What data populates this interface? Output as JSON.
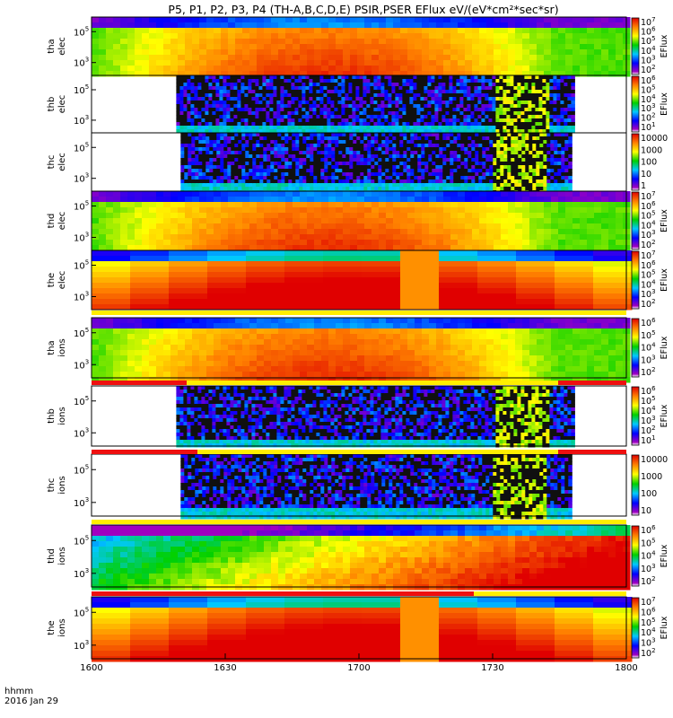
{
  "figure": {
    "title": "P5, P1, P2, P3, P4 (TH-A,B,C,D,E) PSIR,PSER EFlux eV/(eV*cm²*sec*sr)",
    "time_axis": {
      "label_line1": "hhmm",
      "label_line2": "2016 Jan 29",
      "ticks": [
        "1600",
        "1630",
        "1700",
        "1730",
        "1800"
      ]
    }
  },
  "chart_data": {
    "type": "heatmap",
    "title": "P5, P1, P2, P3, P4 (TH-A,B,C,D,E) PSIR,PSER EFlux eV/(eV*cm²*sec*sr)",
    "x_range": [
      "16:00",
      "18:00"
    ],
    "x_ticks": [
      "1600",
      "1630",
      "1700",
      "1730",
      "1800"
    ],
    "colorscale": "rainbow",
    "panels": [
      {
        "label1": "tha",
        "label2": "elec",
        "yticks": [
          {
            "m": "10",
            "e": "5"
          },
          {
            "m": "10",
            "e": "3"
          }
        ],
        "cbar_ticks": [
          {
            "m": "10",
            "e": "7"
          },
          {
            "m": "10",
            "e": "6"
          },
          {
            "m": "10",
            "e": "5"
          },
          {
            "m": "10",
            "e": "4"
          },
          {
            "m": "10",
            "e": "3"
          },
          {
            "m": "10",
            "e": "2"
          }
        ],
        "cbar_label": "EFlux",
        "coverage": [
          "16:00",
          "18:00"
        ]
      },
      {
        "label1": "thb",
        "label2": "elec",
        "yticks": [
          {
            "m": "10",
            "e": "5"
          },
          {
            "m": "10",
            "e": "3"
          }
        ],
        "cbar_ticks": [
          {
            "m": "10",
            "e": "6"
          },
          {
            "m": "10",
            "e": "5"
          },
          {
            "m": "10",
            "e": "4"
          },
          {
            "m": "10",
            "e": "3"
          },
          {
            "m": "10",
            "e": "2"
          },
          {
            "m": "10",
            "e": "1"
          }
        ],
        "cbar_label": "EFlux",
        "coverage": [
          "16:19",
          "17:48"
        ]
      },
      {
        "label1": "thc",
        "label2": "elec",
        "yticks": [
          {
            "m": "10",
            "e": "5"
          },
          {
            "m": "10",
            "e": "3"
          }
        ],
        "cbar_ticks": [
          {
            "m": "10000",
            "e": ""
          },
          {
            "m": "1000",
            "e": ""
          },
          {
            "m": "100",
            "e": ""
          },
          {
            "m": "10",
            "e": ""
          },
          {
            "m": "1",
            "e": ""
          }
        ],
        "cbar_label": "",
        "coverage": [
          "16:20",
          "17:47"
        ]
      },
      {
        "label1": "thd",
        "label2": "elec",
        "yticks": [
          {
            "m": "10",
            "e": "5"
          },
          {
            "m": "10",
            "e": "3"
          }
        ],
        "cbar_ticks": [
          {
            "m": "10",
            "e": "7"
          },
          {
            "m": "10",
            "e": "6"
          },
          {
            "m": "10",
            "e": "5"
          },
          {
            "m": "10",
            "e": "4"
          },
          {
            "m": "10",
            "e": "3"
          },
          {
            "m": "10",
            "e": "2"
          }
        ],
        "cbar_label": "EFlux",
        "coverage": [
          "16:00",
          "18:00"
        ]
      },
      {
        "label1": "the",
        "label2": "elec",
        "yticks": [
          {
            "m": "10",
            "e": "5"
          },
          {
            "m": "10",
            "e": "3"
          }
        ],
        "cbar_ticks": [
          {
            "m": "10",
            "e": "7"
          },
          {
            "m": "10",
            "e": "6"
          },
          {
            "m": "10",
            "e": "5"
          },
          {
            "m": "10",
            "e": "4"
          },
          {
            "m": "10",
            "e": "3"
          },
          {
            "m": "10",
            "e": "2"
          }
        ],
        "cbar_label": "EFlux",
        "coverage": [
          "16:00",
          "18:00"
        ]
      },
      {
        "label1": "tha",
        "label2": "ions",
        "yticks": [
          {
            "m": "10",
            "e": "5"
          },
          {
            "m": "10",
            "e": "3"
          }
        ],
        "cbar_ticks": [
          {
            "m": "10",
            "e": "6"
          },
          {
            "m": "10",
            "e": "5"
          },
          {
            "m": "10",
            "e": "4"
          },
          {
            "m": "10",
            "e": "3"
          },
          {
            "m": "10",
            "e": "2"
          }
        ],
        "cbar_label": "EFlux",
        "coverage": [
          "16:00",
          "18:00"
        ]
      },
      {
        "label1": "thb",
        "label2": "ions",
        "yticks": [
          {
            "m": "10",
            "e": "5"
          },
          {
            "m": "10",
            "e": "3"
          }
        ],
        "cbar_ticks": [
          {
            "m": "10",
            "e": "6"
          },
          {
            "m": "10",
            "e": "5"
          },
          {
            "m": "10",
            "e": "4"
          },
          {
            "m": "10",
            "e": "3"
          },
          {
            "m": "10",
            "e": "2"
          },
          {
            "m": "10",
            "e": "1"
          }
        ],
        "cbar_label": "EFlux",
        "coverage": [
          "16:19",
          "17:48"
        ]
      },
      {
        "label1": "thc",
        "label2": "ions",
        "yticks": [
          {
            "m": "10",
            "e": "5"
          },
          {
            "m": "10",
            "e": "3"
          }
        ],
        "cbar_ticks": [
          {
            "m": "10000",
            "e": ""
          },
          {
            "m": "1000",
            "e": ""
          },
          {
            "m": "100",
            "e": ""
          },
          {
            "m": "10",
            "e": ""
          }
        ],
        "cbar_label": "",
        "coverage": [
          "16:20",
          "17:47"
        ]
      },
      {
        "label1": "thd",
        "label2": "ions",
        "yticks": [
          {
            "m": "10",
            "e": "5"
          },
          {
            "m": "10",
            "e": "3"
          }
        ],
        "cbar_ticks": [
          {
            "m": "10",
            "e": "6"
          },
          {
            "m": "10",
            "e": "5"
          },
          {
            "m": "10",
            "e": "4"
          },
          {
            "m": "10",
            "e": "3"
          },
          {
            "m": "10",
            "e": "2"
          }
        ],
        "cbar_label": "EFlux",
        "coverage": [
          "16:00",
          "18:00"
        ]
      },
      {
        "label1": "the",
        "label2": "ions",
        "yticks": [
          {
            "m": "10",
            "e": "5"
          },
          {
            "m": "10",
            "e": "3"
          }
        ],
        "cbar_ticks": [
          {
            "m": "10",
            "e": "7"
          },
          {
            "m": "10",
            "e": "6"
          },
          {
            "m": "10",
            "e": "5"
          },
          {
            "m": "10",
            "e": "4"
          },
          {
            "m": "10",
            "e": "3"
          },
          {
            "m": "10",
            "e": "2"
          }
        ],
        "cbar_label": "EFlux",
        "coverage": [
          "16:00",
          "18:00"
        ]
      }
    ]
  },
  "colors": {
    "status_red": "#ee1010",
    "status_yellow": "#ffee00"
  }
}
